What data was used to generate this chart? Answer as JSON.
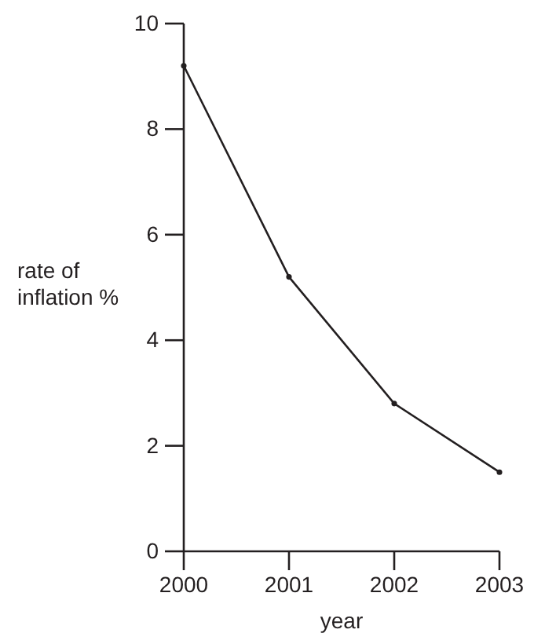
{
  "chart_data": {
    "type": "line",
    "xlabel": "year",
    "ylabel": "rate of inflation %",
    "x": [
      2000,
      2001,
      2002,
      2003
    ],
    "series": [
      {
        "color": "#231f20",
        "values": [
          9.2,
          5.2,
          2.8,
          1.5
        ]
      }
    ],
    "xlim": [
      2000,
      2003
    ],
    "xticks": [
      2000,
      2001,
      2002,
      2003
    ],
    "ylim": [
      0,
      10
    ],
    "yticks": [
      0,
      2,
      4,
      6,
      8,
      10
    ],
    "grid": false,
    "marker": "circle",
    "line_style": "solid"
  }
}
